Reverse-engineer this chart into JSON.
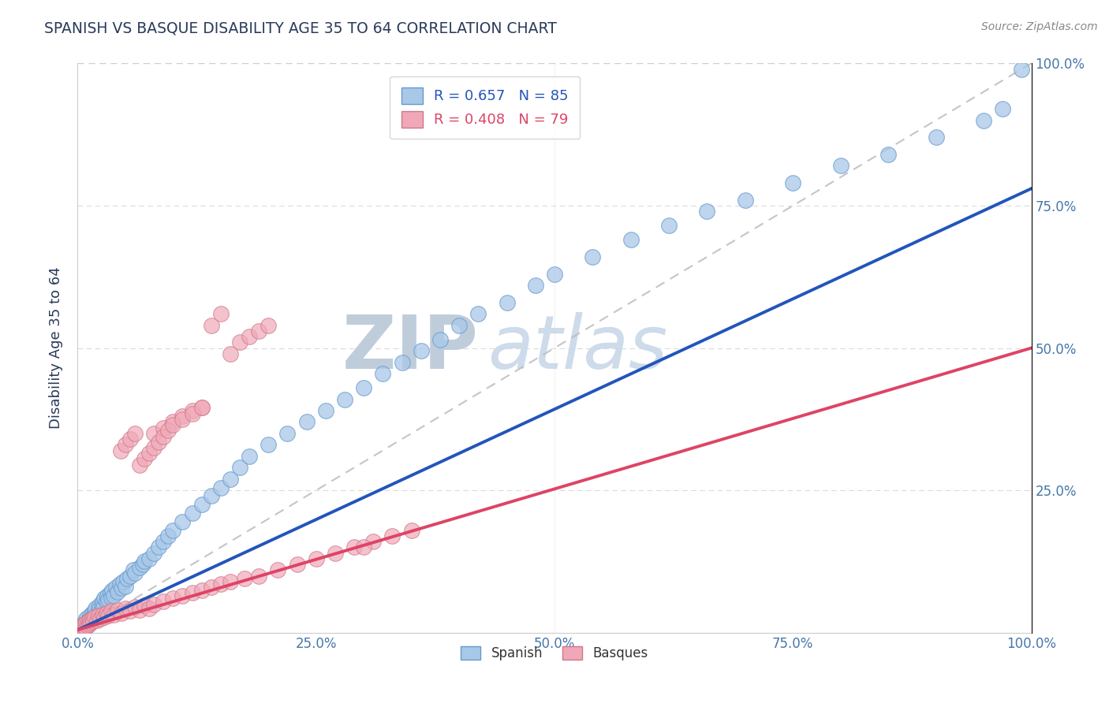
{
  "title": "SPANISH VS BASQUE DISABILITY AGE 35 TO 64 CORRELATION CHART",
  "source": "Source: ZipAtlas.com",
  "ylabel": "Disability Age 35 to 64",
  "xlim": [
    0,
    1
  ],
  "ylim": [
    0,
    1
  ],
  "xticks": [
    0,
    0.25,
    0.5,
    0.75,
    1.0
  ],
  "yticks": [
    0.25,
    0.5,
    0.75,
    1.0
  ],
  "xticklabels": [
    "0.0%",
    "25.0%",
    "50.0%",
    "75.0%",
    "100.0%"
  ],
  "right_yticklabels": [
    "25.0%",
    "50.0%",
    "75.0%",
    "100.0%"
  ],
  "blue_R": 0.657,
  "blue_N": 85,
  "pink_R": 0.408,
  "pink_N": 79,
  "blue_color": "#a8c8e8",
  "pink_color": "#f0a8b8",
  "blue_edge_color": "#6699cc",
  "pink_edge_color": "#cc7788",
  "blue_line_color": "#2255bb",
  "pink_line_color": "#dd4466",
  "ref_line_color": "#bbbbbb",
  "watermark_color": "#d0dde8",
  "title_color": "#2a3a5a",
  "axis_label_color": "#2a3a5a",
  "tick_label_color": "#4477aa",
  "blue_line_x0": 0.0,
  "blue_line_y0": 0.005,
  "blue_line_x1": 1.0,
  "blue_line_y1": 0.78,
  "pink_line_x0": 0.0,
  "pink_line_y0": 0.005,
  "pink_line_x1": 1.0,
  "pink_line_y1": 0.5,
  "blue_scatter_x": [
    0.005,
    0.006,
    0.007,
    0.008,
    0.008,
    0.009,
    0.01,
    0.011,
    0.012,
    0.013,
    0.014,
    0.015,
    0.016,
    0.017,
    0.018,
    0.019,
    0.02,
    0.021,
    0.022,
    0.023,
    0.025,
    0.026,
    0.027,
    0.028,
    0.03,
    0.031,
    0.032,
    0.034,
    0.035,
    0.036,
    0.038,
    0.04,
    0.042,
    0.044,
    0.046,
    0.048,
    0.05,
    0.052,
    0.055,
    0.058,
    0.06,
    0.065,
    0.068,
    0.07,
    0.075,
    0.08,
    0.085,
    0.09,
    0.095,
    0.1,
    0.11,
    0.12,
    0.13,
    0.14,
    0.15,
    0.16,
    0.17,
    0.18,
    0.2,
    0.22,
    0.24,
    0.26,
    0.28,
    0.3,
    0.32,
    0.34,
    0.36,
    0.38,
    0.4,
    0.42,
    0.45,
    0.48,
    0.5,
    0.54,
    0.58,
    0.62,
    0.66,
    0.7,
    0.75,
    0.8,
    0.85,
    0.9,
    0.95,
    0.97,
    0.99
  ],
  "blue_scatter_y": [
    0.005,
    0.015,
    0.008,
    0.02,
    0.01,
    0.025,
    0.015,
    0.018,
    0.022,
    0.03,
    0.025,
    0.035,
    0.028,
    0.032,
    0.038,
    0.042,
    0.03,
    0.035,
    0.04,
    0.048,
    0.05,
    0.055,
    0.045,
    0.06,
    0.055,
    0.065,
    0.058,
    0.07,
    0.062,
    0.075,
    0.065,
    0.08,
    0.072,
    0.085,
    0.078,
    0.09,
    0.082,
    0.095,
    0.1,
    0.11,
    0.105,
    0.115,
    0.12,
    0.125,
    0.13,
    0.14,
    0.15,
    0.16,
    0.17,
    0.18,
    0.195,
    0.21,
    0.225,
    0.24,
    0.255,
    0.27,
    0.29,
    0.31,
    0.33,
    0.35,
    0.37,
    0.39,
    0.41,
    0.43,
    0.455,
    0.475,
    0.495,
    0.515,
    0.54,
    0.56,
    0.58,
    0.61,
    0.63,
    0.66,
    0.69,
    0.715,
    0.74,
    0.76,
    0.79,
    0.82,
    0.84,
    0.87,
    0.9,
    0.92,
    0.99
  ],
  "pink_scatter_x": [
    0.004,
    0.005,
    0.006,
    0.007,
    0.008,
    0.009,
    0.01,
    0.011,
    0.012,
    0.013,
    0.014,
    0.015,
    0.016,
    0.018,
    0.02,
    0.022,
    0.024,
    0.026,
    0.028,
    0.03,
    0.032,
    0.035,
    0.038,
    0.042,
    0.046,
    0.05,
    0.055,
    0.06,
    0.065,
    0.07,
    0.075,
    0.08,
    0.09,
    0.1,
    0.11,
    0.12,
    0.13,
    0.14,
    0.15,
    0.16,
    0.175,
    0.19,
    0.21,
    0.23,
    0.25,
    0.27,
    0.29,
    0.31,
    0.33,
    0.35,
    0.08,
    0.09,
    0.1,
    0.11,
    0.12,
    0.13,
    0.045,
    0.05,
    0.055,
    0.06,
    0.065,
    0.07,
    0.075,
    0.08,
    0.085,
    0.09,
    0.095,
    0.1,
    0.11,
    0.12,
    0.13,
    0.14,
    0.15,
    0.16,
    0.17,
    0.18,
    0.19,
    0.2,
    0.3
  ],
  "pink_scatter_y": [
    0.005,
    0.012,
    0.008,
    0.015,
    0.01,
    0.018,
    0.012,
    0.02,
    0.015,
    0.022,
    0.018,
    0.025,
    0.02,
    0.028,
    0.022,
    0.03,
    0.025,
    0.032,
    0.028,
    0.035,
    0.03,
    0.038,
    0.032,
    0.04,
    0.035,
    0.042,
    0.038,
    0.045,
    0.04,
    0.048,
    0.042,
    0.05,
    0.055,
    0.06,
    0.065,
    0.07,
    0.075,
    0.08,
    0.085,
    0.09,
    0.095,
    0.1,
    0.11,
    0.12,
    0.13,
    0.14,
    0.15,
    0.16,
    0.17,
    0.18,
    0.35,
    0.36,
    0.37,
    0.38,
    0.39,
    0.395,
    0.32,
    0.33,
    0.34,
    0.35,
    0.295,
    0.305,
    0.315,
    0.325,
    0.335,
    0.345,
    0.355,
    0.365,
    0.375,
    0.385,
    0.395,
    0.54,
    0.56,
    0.49,
    0.51,
    0.52,
    0.53,
    0.54,
    0.15
  ]
}
